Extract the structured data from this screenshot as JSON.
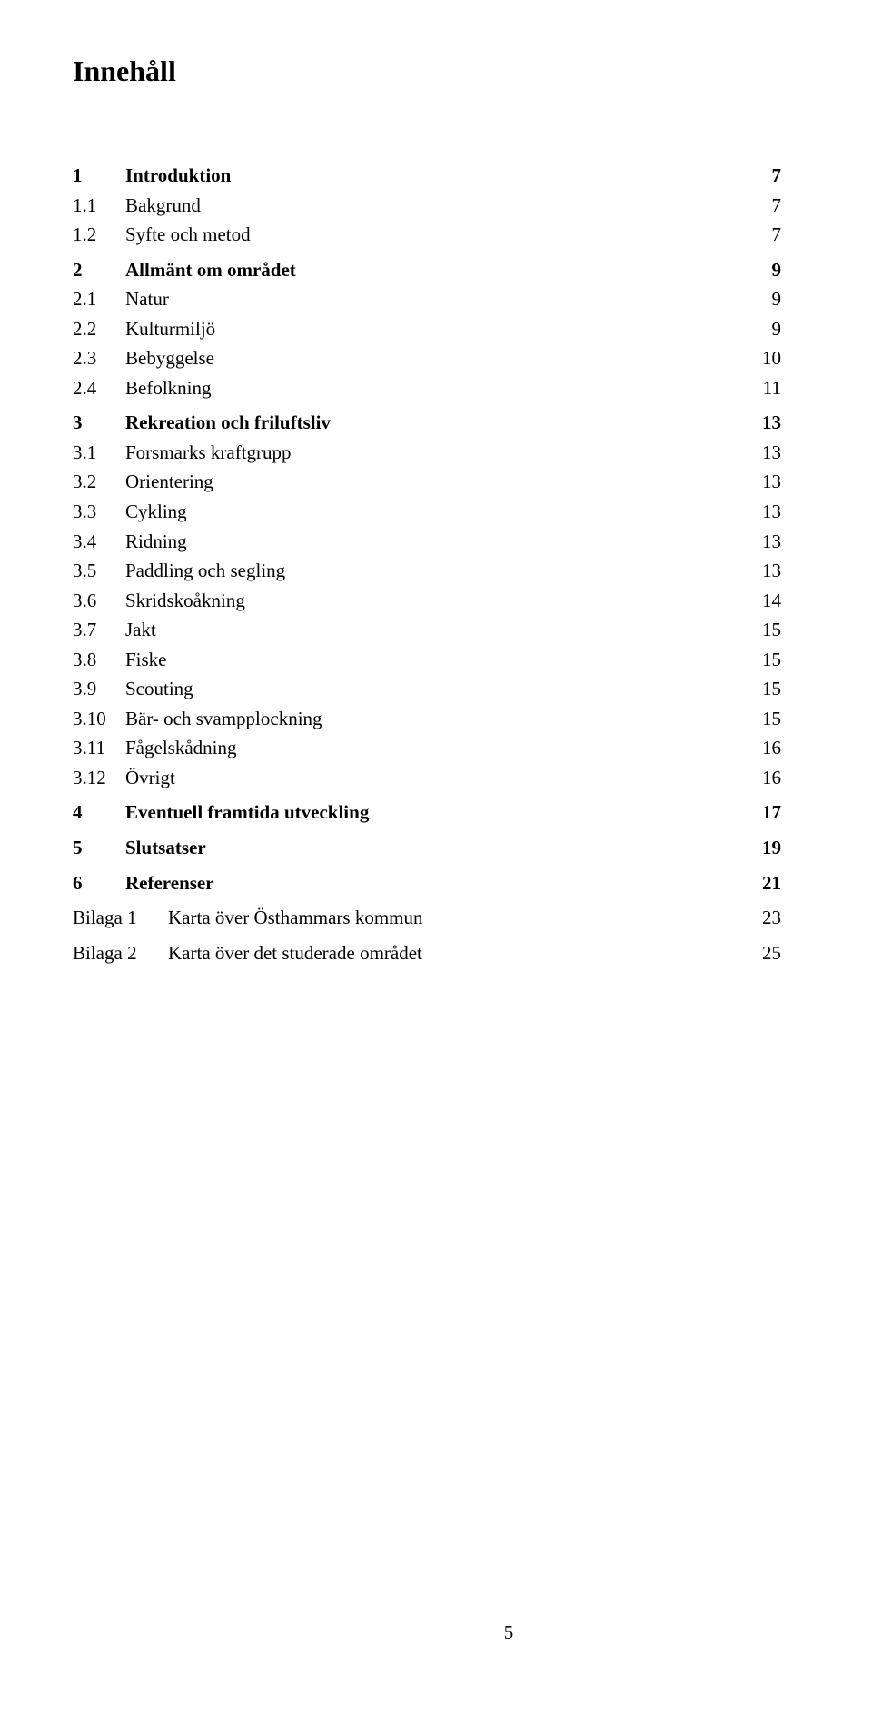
{
  "title": "Innehåll",
  "font": {
    "family": "Times New Roman",
    "title_size_pt": 24,
    "body_size_pt": 16,
    "color": "#000000",
    "background": "#ffffff"
  },
  "toc": [
    {
      "type": "section",
      "num": "1",
      "label": "Introduktion",
      "page": "7"
    },
    {
      "type": "sub",
      "num": "1.1",
      "label": "Bakgrund",
      "page": "7"
    },
    {
      "type": "sub",
      "num": "1.2",
      "label": "Syfte och metod",
      "page": "7"
    },
    {
      "type": "section",
      "num": "2",
      "label": "Allmänt om området",
      "page": "9"
    },
    {
      "type": "sub",
      "num": "2.1",
      "label": "Natur",
      "page": "9"
    },
    {
      "type": "sub",
      "num": "2.2",
      "label": "Kulturmiljö",
      "page": "9"
    },
    {
      "type": "sub",
      "num": "2.3",
      "label": "Bebyggelse",
      "page": "10"
    },
    {
      "type": "sub",
      "num": "2.4",
      "label": "Befolkning",
      "page": "11"
    },
    {
      "type": "section",
      "num": "3",
      "label": "Rekreation och friluftsliv",
      "page": "13"
    },
    {
      "type": "sub",
      "num": "3.1",
      "label": "Forsmarks kraftgrupp",
      "page": "13"
    },
    {
      "type": "sub",
      "num": "3.2",
      "label": "Orientering",
      "page": "13"
    },
    {
      "type": "sub",
      "num": "3.3",
      "label": "Cykling",
      "page": "13"
    },
    {
      "type": "sub",
      "num": "3.4",
      "label": "Ridning",
      "page": "13"
    },
    {
      "type": "sub",
      "num": "3.5",
      "label": "Paddling och segling",
      "page": "13"
    },
    {
      "type": "sub",
      "num": "3.6",
      "label": "Skridskoåkning",
      "page": "14"
    },
    {
      "type": "sub",
      "num": "3.7",
      "label": "Jakt",
      "page": "15"
    },
    {
      "type": "sub",
      "num": "3.8",
      "label": "Fiske",
      "page": "15"
    },
    {
      "type": "sub",
      "num": "3.9",
      "label": "Scouting",
      "page": "15"
    },
    {
      "type": "sub",
      "num": "3.10",
      "label": "Bär- och svampplockning",
      "page": "15"
    },
    {
      "type": "sub",
      "num": "3.11",
      "label": "Fågelskådning",
      "page": "16"
    },
    {
      "type": "sub",
      "num": "3.12",
      "label": "Övrigt",
      "page": "16"
    },
    {
      "type": "section",
      "num": "4",
      "label": "Eventuell framtida utveckling",
      "page": "17"
    },
    {
      "type": "section",
      "num": "5",
      "label": "Slutsatser",
      "page": "19"
    },
    {
      "type": "section",
      "num": "6",
      "label": "Referenser",
      "page": "21"
    },
    {
      "type": "appendix",
      "num": "Bilaga 1",
      "label": "Karta över Östhammars kommun",
      "page": "23"
    },
    {
      "type": "appendix",
      "num": "Bilaga 2",
      "label": "Karta över det studerade området",
      "page": "25"
    }
  ],
  "page_number": "5"
}
